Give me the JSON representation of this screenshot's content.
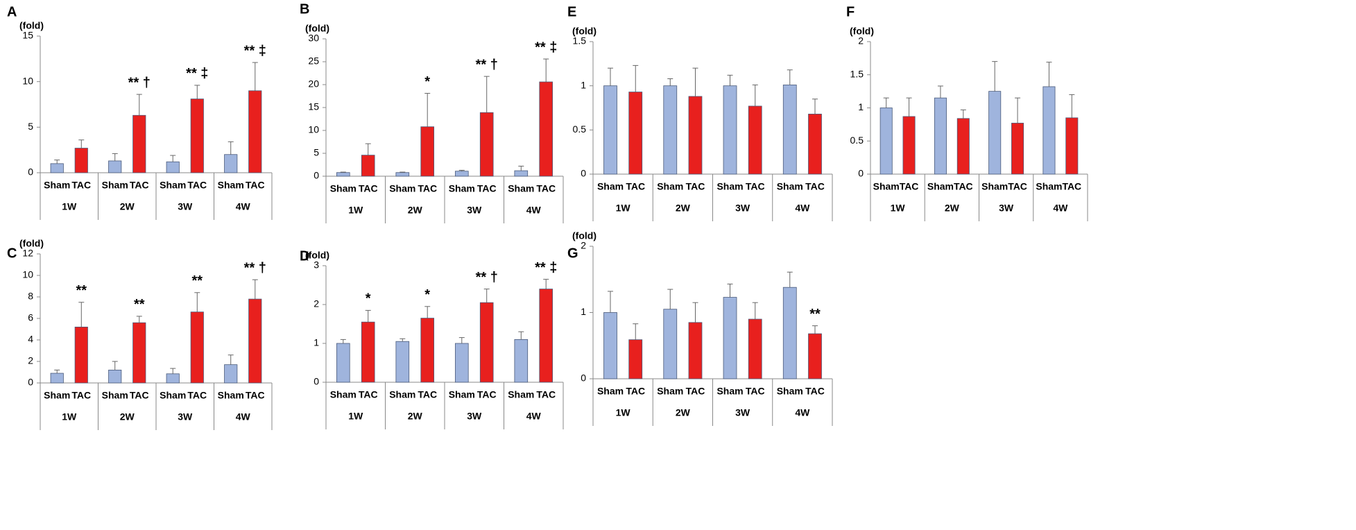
{
  "chart_data": [
    {
      "type": "bar",
      "panel": "A",
      "unit": "(fold)",
      "groups": [
        "1W",
        "2W",
        "3W",
        "4W"
      ],
      "categories": [
        "Sham",
        "TAC",
        "Sham",
        "TAC",
        "Sham",
        "TAC",
        "Sham",
        "TAC"
      ],
      "colors": [
        "#9fb4dd",
        "#e8201e"
      ],
      "values": [
        1.0,
        2.7,
        1.3,
        6.3,
        1.2,
        8.1,
        2.0,
        9.0
      ],
      "errors": [
        0.4,
        0.9,
        0.8,
        2.3,
        0.7,
        1.5,
        1.4,
        3.1
      ],
      "annotations": [
        null,
        null,
        null,
        "** †",
        null,
        "** ‡",
        null,
        "** ‡"
      ],
      "ylim": [
        0,
        15
      ],
      "yticks": [
        0,
        5,
        10,
        15
      ]
    },
    {
      "type": "bar",
      "panel": "B",
      "unit": "(fold)",
      "groups": [
        "1W",
        "2W",
        "3W",
        "4W"
      ],
      "categories": [
        "Sham",
        "TAC",
        "Sham",
        "TAC",
        "Sham",
        "TAC",
        "Sham",
        "TAC"
      ],
      "colors": [
        "#9fb4dd",
        "#e8201e"
      ],
      "values": [
        0.8,
        4.6,
        0.8,
        10.8,
        1.1,
        13.9,
        1.2,
        20.6
      ],
      "errors": [
        0.1,
        2.5,
        0.1,
        7.3,
        0.2,
        7.9,
        1.0,
        5.0
      ],
      "annotations": [
        null,
        null,
        null,
        "*",
        null,
        "** †",
        null,
        "** ‡"
      ],
      "ylim": [
        0,
        30
      ],
      "yticks": [
        0,
        5,
        10,
        15,
        20,
        25,
        30
      ]
    },
    {
      "type": "bar",
      "panel": "C",
      "unit": "(fold)",
      "groups": [
        "1W",
        "2W",
        "3W",
        "4W"
      ],
      "categories": [
        "Sham",
        "TAC",
        "Sham",
        "TAC",
        "Sham",
        "TAC",
        "Sham",
        "TAC"
      ],
      "colors": [
        "#9fb4dd",
        "#e8201e"
      ],
      "values": [
        0.9,
        5.2,
        1.2,
        5.6,
        0.85,
        6.6,
        1.7,
        7.8
      ],
      "errors": [
        0.3,
        2.3,
        0.8,
        0.6,
        0.5,
        1.8,
        0.9,
        1.8
      ],
      "annotations": [
        null,
        "**",
        null,
        "**",
        null,
        "**",
        null,
        "** †"
      ],
      "ylim": [
        0,
        12
      ],
      "yticks": [
        0,
        2,
        4,
        6,
        8,
        10,
        12
      ]
    },
    {
      "type": "bar",
      "panel": "D",
      "unit": "(fold)",
      "groups": [
        "1W",
        "2W",
        "3W",
        "4W"
      ],
      "categories": [
        "Sham",
        "TAC",
        "Sham",
        "TAC",
        "Sham",
        "TAC",
        "Sham",
        "TAC"
      ],
      "colors": [
        "#9fb4dd",
        "#e8201e"
      ],
      "values": [
        1.0,
        1.55,
        1.05,
        1.65,
        1.0,
        2.05,
        1.1,
        2.4
      ],
      "errors": [
        0.1,
        0.3,
        0.07,
        0.3,
        0.15,
        0.35,
        0.2,
        0.25
      ],
      "annotations": [
        null,
        "*",
        null,
        "*",
        null,
        "** †",
        null,
        "** ‡"
      ],
      "ylim": [
        0,
        3
      ],
      "yticks": [
        0,
        1,
        2,
        3
      ]
    },
    {
      "type": "bar",
      "panel": "E",
      "unit": "(fold)",
      "groups": [
        "1W",
        "2W",
        "3W",
        "4W"
      ],
      "categories": [
        "Sham",
        "TAC",
        "Sham",
        "TAC",
        "Sham",
        "TAC",
        "Sham",
        "TAC"
      ],
      "colors": [
        "#9fb4dd",
        "#e8201e"
      ],
      "values": [
        1.0,
        0.93,
        1.0,
        0.88,
        1.0,
        0.77,
        1.01,
        0.68
      ],
      "errors": [
        0.2,
        0.3,
        0.08,
        0.32,
        0.12,
        0.24,
        0.17,
        0.17
      ],
      "annotations": [
        null,
        null,
        null,
        null,
        null,
        null,
        null,
        null
      ],
      "ylim": [
        0,
        1.5
      ],
      "yticks": [
        0,
        0.5,
        1,
        1.5
      ]
    },
    {
      "type": "bar",
      "panel": "F",
      "unit": "(fold)",
      "groups": [
        "1W",
        "2W",
        "3W",
        "4W"
      ],
      "categories": [
        "Sham",
        "TAC",
        "Sham",
        "TAC",
        "Sham",
        "TAC",
        "Sham",
        "TAC"
      ],
      "colors": [
        "#9fb4dd",
        "#e8201e"
      ],
      "values": [
        1.0,
        0.87,
        1.15,
        0.84,
        1.25,
        0.77,
        1.32,
        0.85
      ],
      "errors": [
        0.15,
        0.28,
        0.18,
        0.13,
        0.45,
        0.38,
        0.37,
        0.35
      ],
      "annotations": [
        null,
        null,
        null,
        null,
        null,
        null,
        null,
        null
      ],
      "ylim": [
        0,
        2
      ],
      "yticks": [
        0,
        0.5,
        1,
        1.5,
        2
      ]
    },
    {
      "type": "bar",
      "panel": "G",
      "unit": "(fold)",
      "groups": [
        "1W",
        "2W",
        "3W",
        "4W"
      ],
      "categories": [
        "Sham",
        "TAC",
        "Sham",
        "TAC",
        "Sham",
        "TAC",
        "Sham",
        "TAC"
      ],
      "colors": [
        "#9fb4dd",
        "#e8201e"
      ],
      "values": [
        1.0,
        0.59,
        1.05,
        0.85,
        1.23,
        0.9,
        1.38,
        0.68
      ],
      "errors": [
        0.32,
        0.24,
        0.3,
        0.3,
        0.2,
        0.25,
        0.23,
        0.12
      ],
      "annotations": [
        null,
        null,
        null,
        null,
        null,
        null,
        null,
        "**"
      ],
      "ylim": [
        0,
        2
      ],
      "yticks": [
        0,
        1,
        2
      ]
    }
  ]
}
